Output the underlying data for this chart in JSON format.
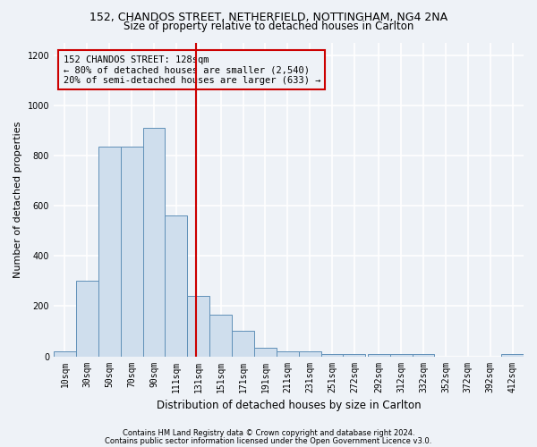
{
  "title_line1": "152, CHANDOS STREET, NETHERFIELD, NOTTINGHAM, NG4 2NA",
  "title_line2": "Size of property relative to detached houses in Carlton",
  "xlabel": "Distribution of detached houses by size in Carlton",
  "ylabel": "Number of detached properties",
  "footer_line1": "Contains HM Land Registry data © Crown copyright and database right 2024.",
  "footer_line2": "Contains public sector information licensed under the Open Government Licence v3.0.",
  "annotation_line1": "152 CHANDOS STREET: 128sqm",
  "annotation_line2": "← 80% of detached houses are smaller (2,540)",
  "annotation_line3": "20% of semi-detached houses are larger (633) →",
  "bar_color": "#cfdeed",
  "bar_edge_color": "#6090b8",
  "vline_color": "#cc0000",
  "vline_x": 128,
  "categories": [
    "10sqm",
    "30sqm",
    "50sqm",
    "70sqm",
    "90sqm",
    "111sqm",
    "131sqm",
    "151sqm",
    "171sqm",
    "191sqm",
    "211sqm",
    "231sqm",
    "251sqm",
    "272sqm",
    "292sqm",
    "312sqm",
    "332sqm",
    "352sqm",
    "372sqm",
    "392sqm",
    "412sqm"
  ],
  "bin_starts": [
    0,
    20,
    40,
    60,
    80,
    100,
    120,
    140,
    160,
    180,
    200,
    220,
    240,
    260,
    282,
    302,
    322,
    342,
    362,
    382,
    402
  ],
  "bin_width": 20,
  "values": [
    20,
    300,
    835,
    835,
    910,
    560,
    240,
    165,
    100,
    35,
    20,
    20,
    10,
    10,
    10,
    10,
    10,
    0,
    0,
    0,
    10
  ],
  "ylim": [
    0,
    1250
  ],
  "yticks": [
    0,
    200,
    400,
    600,
    800,
    1000,
    1200
  ],
  "background_color": "#eef2f7",
  "grid_color": "#ffffff",
  "title_fontsize": 9,
  "subtitle_fontsize": 8.5,
  "ylabel_fontsize": 8,
  "xlabel_fontsize": 8.5,
  "tick_fontsize": 7,
  "footer_fontsize": 6,
  "annotation_fontsize": 7.5
}
